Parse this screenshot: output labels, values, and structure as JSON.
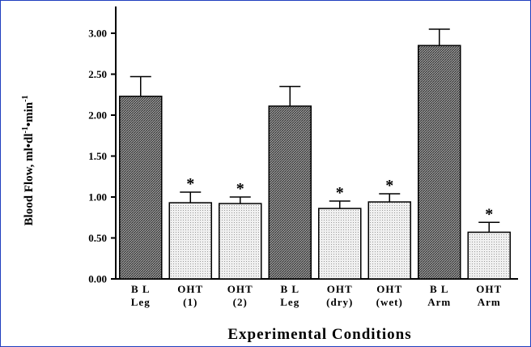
{
  "chart_data": {
    "type": "bar",
    "categories": [
      [
        "B L",
        "Leg"
      ],
      [
        "OHT",
        "(1)"
      ],
      [
        "OHT",
        "(2)"
      ],
      [
        "B L",
        "Leg"
      ],
      [
        "OHT",
        "(dry)"
      ],
      [
        "OHT",
        "(wet)"
      ],
      [
        "B L",
        "Arm"
      ],
      [
        "OHT",
        "Arm"
      ]
    ],
    "values": [
      2.23,
      0.93,
      0.92,
      2.11,
      0.86,
      0.94,
      2.85,
      0.57
    ],
    "errors": [
      0.24,
      0.13,
      0.08,
      0.24,
      0.09,
      0.1,
      0.2,
      0.12
    ],
    "significant": [
      false,
      true,
      true,
      false,
      true,
      true,
      false,
      true
    ],
    "bar_style": [
      "baseline",
      "oht",
      "oht",
      "baseline",
      "oht",
      "oht",
      "baseline",
      "oht"
    ],
    "significance_marker": "*",
    "yticks": [
      "0.00",
      "0.50",
      "1.00",
      "1.50",
      "2.00",
      "2.50",
      "3.00"
    ],
    "ylim": [
      0,
      3.2
    ],
    "title": "",
    "xlabel": "Experimental Conditions",
    "ylabel": "Blood Flow, ml•dl",
    "ylabel_sup1": "-1",
    "ylabel_mid": "•min",
    "ylabel_sup2": "-1",
    "grid": false,
    "colors": {
      "baseline_fill": "#8a8a8a",
      "oht_fill": "#dcdcdc",
      "frame": "#1f3fbf"
    }
  }
}
